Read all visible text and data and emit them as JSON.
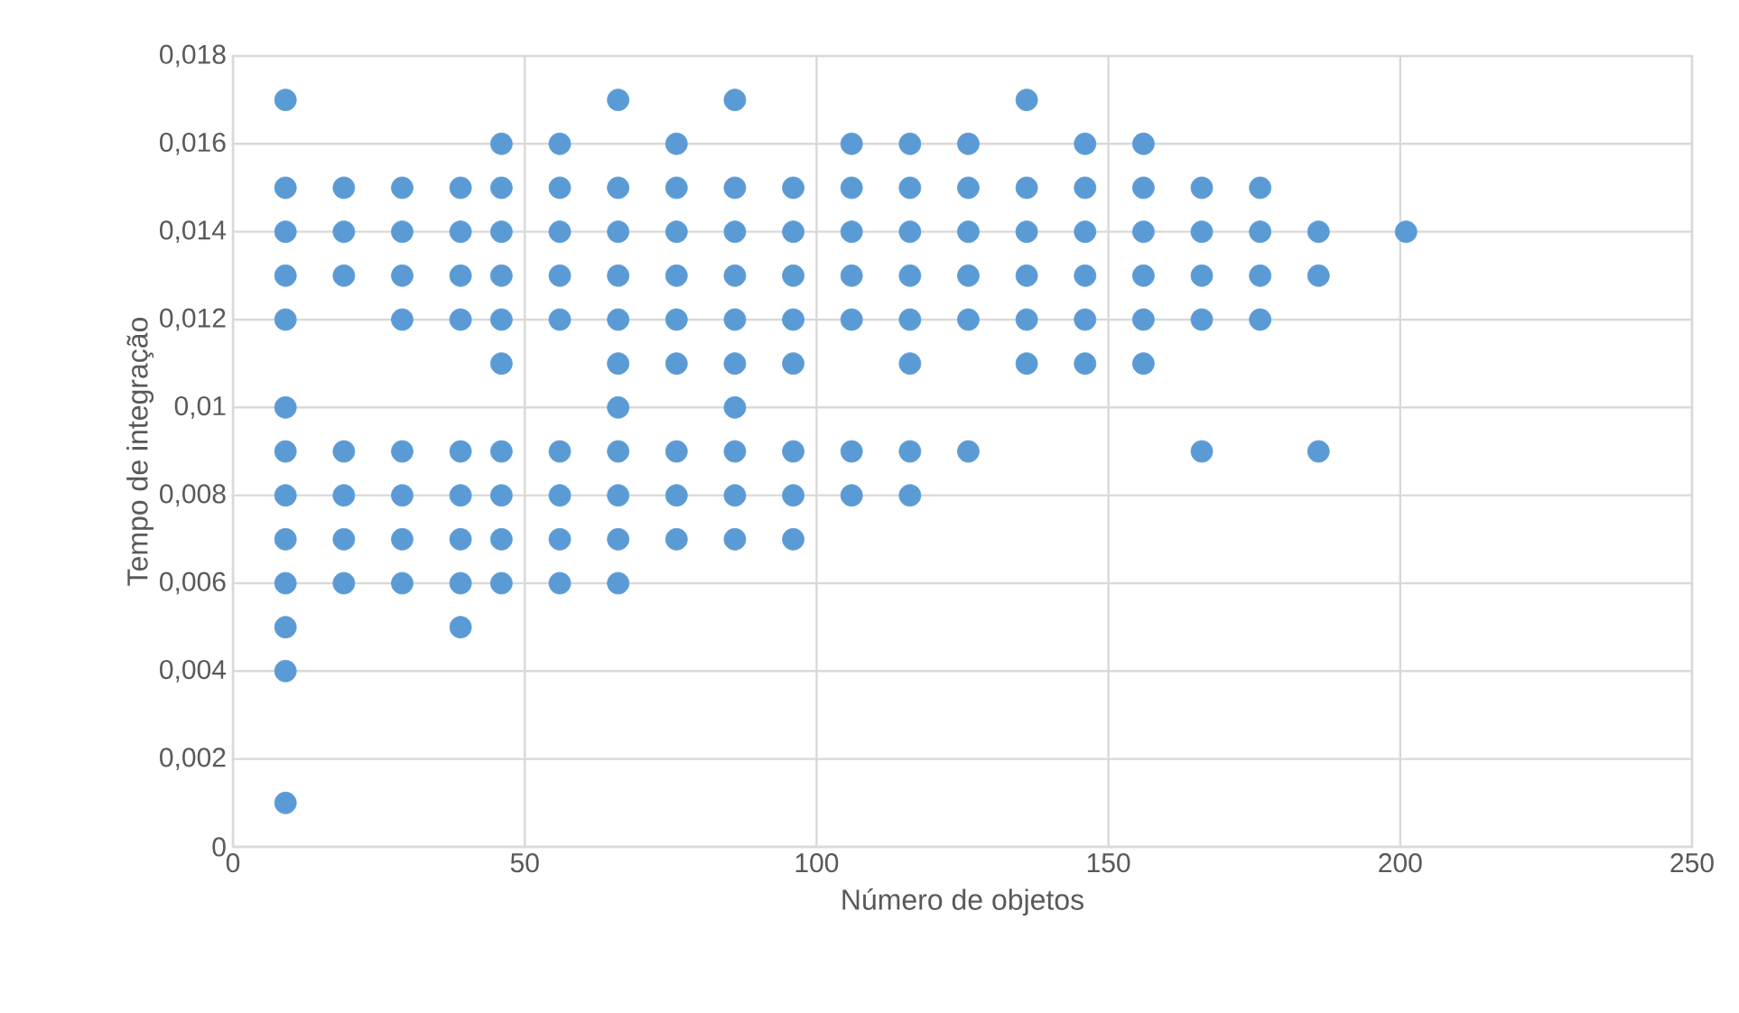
{
  "chart_data": {
    "type": "scatter",
    "xlabel": "Número de objetos",
    "ylabel": "Tempo de integração",
    "x": [
      9,
      9,
      9,
      9,
      9,
      9,
      9,
      9,
      9,
      9,
      9,
      9,
      9,
      19,
      19,
      19,
      19,
      19,
      19,
      19,
      29,
      29,
      29,
      29,
      29,
      29,
      29,
      29,
      39,
      39,
      39,
      39,
      39,
      39,
      39,
      39,
      39,
      46,
      46,
      46,
      46,
      46,
      46,
      46,
      46,
      46,
      46,
      56,
      56,
      56,
      56,
      56,
      56,
      56,
      56,
      56,
      66,
      66,
      66,
      66,
      66,
      66,
      66,
      66,
      66,
      66,
      66,
      76,
      76,
      76,
      76,
      76,
      76,
      76,
      76,
      76,
      86,
      86,
      86,
      86,
      86,
      86,
      86,
      86,
      86,
      86,
      96,
      96,
      96,
      96,
      96,
      96,
      96,
      96,
      106,
      106,
      106,
      106,
      106,
      106,
      106,
      116,
      116,
      116,
      116,
      116,
      116,
      116,
      116,
      126,
      126,
      126,
      126,
      126,
      126,
      136,
      136,
      136,
      136,
      136,
      136,
      146,
      146,
      146,
      146,
      146,
      146,
      156,
      156,
      156,
      156,
      156,
      156,
      166,
      166,
      166,
      166,
      166,
      176,
      176,
      176,
      176,
      186,
      186,
      186,
      201
    ],
    "values": [
      0.017,
      0.015,
      0.014,
      0.013,
      0.012,
      0.01,
      0.009,
      0.008,
      0.007,
      0.006,
      0.005,
      0.004,
      0.001,
      0.015,
      0.014,
      0.013,
      0.009,
      0.008,
      0.007,
      0.006,
      0.015,
      0.014,
      0.013,
      0.012,
      0.009,
      0.008,
      0.007,
      0.006,
      0.015,
      0.014,
      0.013,
      0.012,
      0.009,
      0.008,
      0.007,
      0.006,
      0.005,
      0.016,
      0.015,
      0.014,
      0.013,
      0.012,
      0.011,
      0.009,
      0.008,
      0.007,
      0.006,
      0.016,
      0.015,
      0.014,
      0.013,
      0.012,
      0.009,
      0.008,
      0.007,
      0.006,
      0.017,
      0.015,
      0.014,
      0.013,
      0.012,
      0.011,
      0.01,
      0.009,
      0.008,
      0.007,
      0.006,
      0.016,
      0.015,
      0.014,
      0.013,
      0.012,
      0.011,
      0.009,
      0.008,
      0.007,
      0.017,
      0.015,
      0.014,
      0.013,
      0.012,
      0.011,
      0.01,
      0.009,
      0.008,
      0.007,
      0.015,
      0.014,
      0.013,
      0.012,
      0.011,
      0.009,
      0.008,
      0.007,
      0.016,
      0.015,
      0.014,
      0.013,
      0.012,
      0.009,
      0.008,
      0.016,
      0.015,
      0.014,
      0.013,
      0.012,
      0.011,
      0.009,
      0.008,
      0.016,
      0.015,
      0.014,
      0.013,
      0.012,
      0.009,
      0.017,
      0.015,
      0.014,
      0.013,
      0.012,
      0.011,
      0.016,
      0.015,
      0.014,
      0.013,
      0.012,
      0.011,
      0.016,
      0.015,
      0.014,
      0.013,
      0.012,
      0.011,
      0.015,
      0.014,
      0.013,
      0.012,
      0.009,
      0.015,
      0.014,
      0.013,
      0.012,
      0.014,
      0.013,
      0.009,
      0.014
    ],
    "color": "#5b9bd5",
    "marker": "circle",
    "grid": true,
    "xlim": [
      0,
      250
    ],
    "xticks": [
      0,
      50,
      100,
      150,
      200,
      250
    ],
    "ylim": [
      0,
      0.018
    ],
    "yticks": [
      0,
      {
        "value": 0.002,
        "label": "0,002"
      },
      {
        "value": 0.004,
        "label": "0,004"
      },
      {
        "value": 0.006,
        "label": "0,006"
      },
      {
        "value": 0.008,
        "label": "0,008"
      },
      {
        "value": 0.01,
        "label": "0,01"
      },
      {
        "value": 0.012,
        "label": "0,012"
      },
      {
        "value": 0.014,
        "label": "0,014"
      },
      {
        "value": 0.016,
        "label": "0,016"
      },
      {
        "value": 0.018,
        "label": "0,018"
      }
    ]
  }
}
